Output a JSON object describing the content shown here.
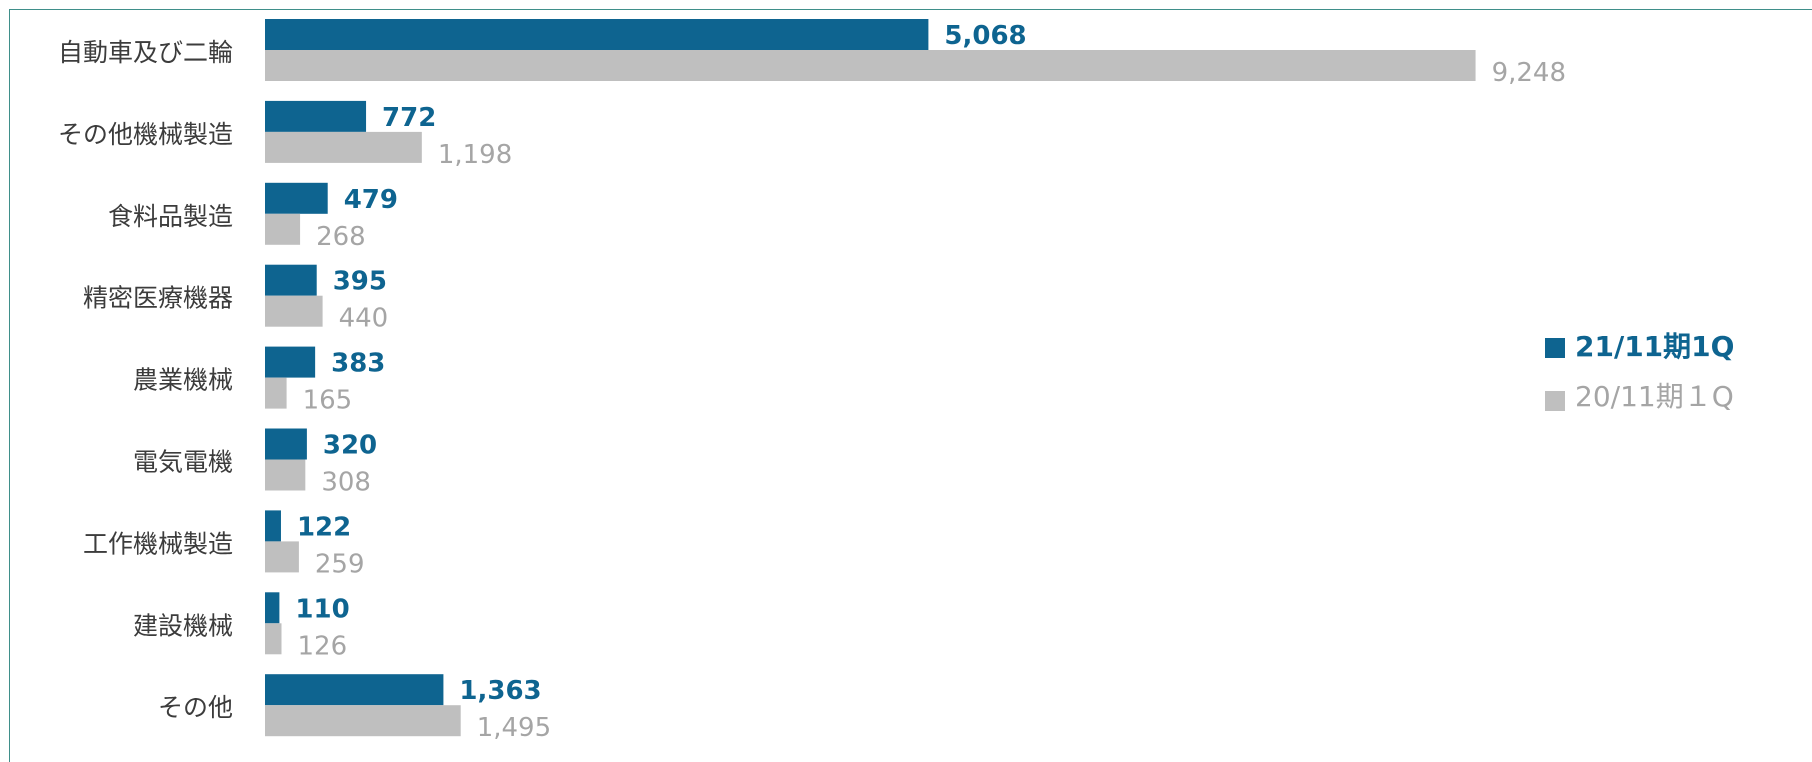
{
  "chart_data": {
    "type": "bar",
    "orientation": "horizontal",
    "categories": [
      "自動車及び二輪",
      "その他機械製造",
      "食料品製造",
      "精密医療機器",
      "農業機械",
      "電気電機",
      "工作機械製造",
      "建設機械",
      "その他"
    ],
    "series": [
      {
        "name": "21/11期1Q",
        "color": "#0e6490",
        "values": [
          5068,
          772,
          479,
          395,
          383,
          320,
          122,
          110,
          1363
        ],
        "labels": [
          "5,068",
          "772",
          "479",
          "395",
          "383",
          "320",
          "122",
          "110",
          "1,363"
        ]
      },
      {
        "name": "20/11期１Q",
        "color": "#bfbfbf",
        "values": [
          9248,
          1198,
          268,
          440,
          165,
          308,
          259,
          126,
          1495
        ],
        "labels": [
          "9,248",
          "1,198",
          "268",
          "440",
          "165",
          "308",
          "259",
          "126",
          "1,495"
        ]
      }
    ],
    "legend_position": "right",
    "grid": false
  }
}
